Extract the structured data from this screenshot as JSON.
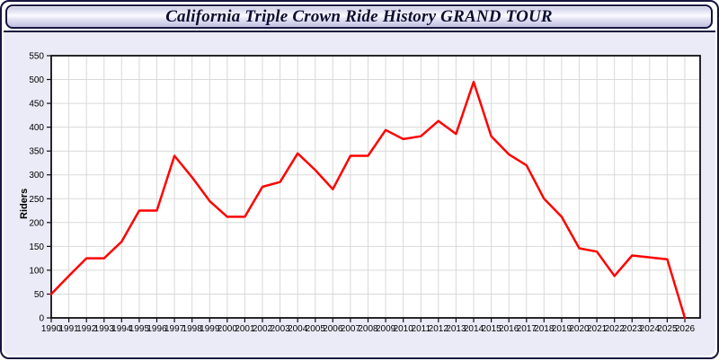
{
  "window": {
    "title": "California Triple Crown Ride History GRAND TOUR"
  },
  "chart_data": {
    "type": "line",
    "title": "California Triple Crown Ride History GRAND TOUR",
    "xlabel": "",
    "ylabel": "Riders",
    "x": [
      1990,
      1991,
      1992,
      1993,
      1994,
      1995,
      1996,
      1997,
      1998,
      1999,
      2000,
      2001,
      2002,
      2003,
      2004,
      2005,
      2006,
      2007,
      2008,
      2009,
      2010,
      2011,
      2012,
      2013,
      2014,
      2015,
      2016,
      2017,
      2018,
      2019,
      2020,
      2021,
      2022,
      2023,
      2024,
      2025,
      2026
    ],
    "series": [
      {
        "name": "Riders",
        "values": [
          50,
          88,
          125,
          125,
          160,
          225,
          225,
          340,
          295,
          245,
          212,
          212,
          275,
          285,
          345,
          310,
          270,
          340,
          340,
          394,
          375,
          381,
          413,
          386,
          495,
          381,
          343,
          320,
          250,
          212,
          146,
          139,
          88,
          131,
          127,
          123,
          0
        ]
      }
    ],
    "ylim": [
      0,
      550
    ],
    "ytick_step": 50,
    "grid": true,
    "legend_position": "none",
    "colors": {
      "line": "#ff0000",
      "grid": "#d9d9d9",
      "plot_background": "#ffffff",
      "panel_background": "#ebebf8",
      "axis": "#111111",
      "tick_text": "#000000",
      "border": "#15153f"
    }
  }
}
